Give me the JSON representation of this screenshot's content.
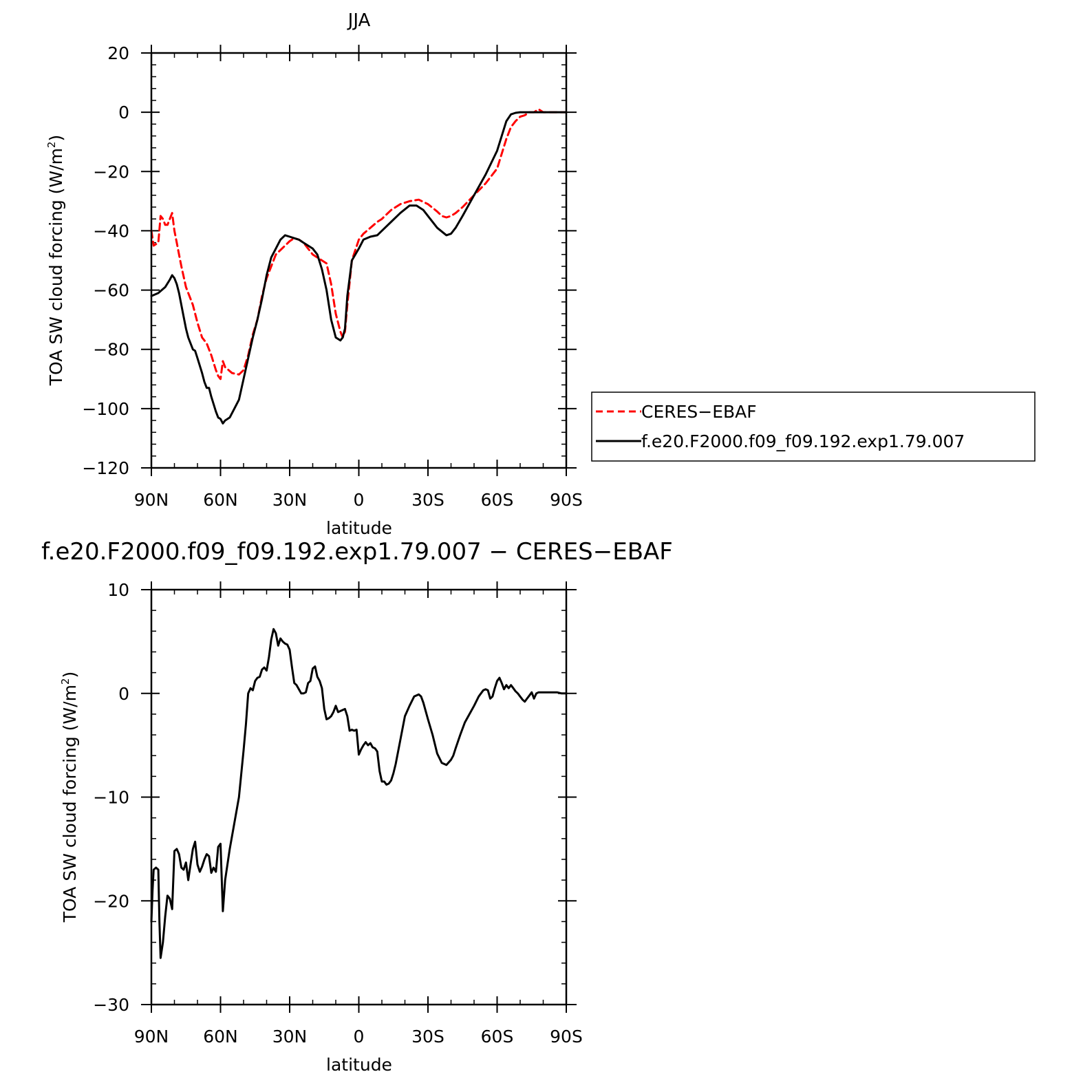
{
  "chart_data": [
    {
      "type": "line",
      "title": "JJA",
      "xlabel": "latitude",
      "ylabel_main": "TOA SW cloud forcing (W/m",
      "ylabel_sup": "2",
      "ylabel_close": ")",
      "xlim": [
        90,
        -90
      ],
      "ylim": [
        -120,
        20
      ],
      "x_ticks": [
        90,
        60,
        30,
        0,
        -30,
        -60,
        -90
      ],
      "x_tick_labels": [
        "90N",
        "60N",
        "30N",
        "0",
        "30S",
        "60S",
        "90S"
      ],
      "y_ticks": [
        20,
        0,
        -20,
        -40,
        -60,
        -80,
        -100,
        -120
      ],
      "y_tick_labels": [
        "20",
        "0",
        "−20",
        "−40",
        "−60",
        "−80",
        "−100",
        "−120"
      ],
      "grid": false,
      "legend": "right",
      "series": [
        {
          "name": "CERES−EBAF",
          "color": "#ff0000",
          "dash": "dashed",
          "x": [
            90,
            89,
            87,
            86,
            85,
            84,
            83,
            82,
            81,
            80,
            79,
            78,
            77,
            75,
            72,
            70,
            68,
            66,
            64,
            62,
            61,
            60,
            59,
            58,
            55,
            52,
            50,
            48,
            46,
            44,
            42,
            40,
            38,
            36,
            34,
            32,
            30,
            28,
            26,
            24,
            22,
            20,
            18,
            16,
            14,
            12,
            10,
            8,
            7,
            6,
            5,
            3,
            0,
            -2,
            -5,
            -8,
            -10,
            -14,
            -18,
            -22,
            -26,
            -30,
            -34,
            -36,
            -38,
            -40,
            -42,
            -45,
            -50,
            -55,
            -60,
            -62,
            -64,
            -66,
            -68,
            -70,
            -72,
            -74,
            -76,
            -78,
            -80,
            -85,
            -90
          ],
          "y": [
            -40,
            -45,
            -44,
            -35,
            -36,
            -38,
            -38,
            -36,
            -34,
            -40,
            -44,
            -48,
            -52,
            -59,
            -65,
            -71,
            -76,
            -78,
            -82,
            -87,
            -89,
            -90,
            -84,
            -86,
            -88,
            -88.5,
            -87,
            -82,
            -75,
            -70,
            -62,
            -56,
            -52,
            -48,
            -46.5,
            -45,
            -43.5,
            -42.5,
            -43,
            -44,
            -46,
            -48,
            -49,
            -50,
            -51,
            -58,
            -68,
            -74,
            -76,
            -74,
            -65,
            -50,
            -43,
            -41,
            -39,
            -37,
            -36,
            -33,
            -31,
            -30,
            -29.5,
            -31,
            -33.5,
            -35,
            -35.5,
            -35,
            -34,
            -32,
            -28,
            -24,
            -19,
            -14,
            -9,
            -5,
            -3,
            -1.5,
            -1,
            0,
            0,
            1,
            0,
            0,
            0
          ]
        },
        {
          "name": "f.e20.F2000.f09_f09.192.exp1.79.007",
          "color": "#000000",
          "dash": "solid",
          "x": [
            90,
            87,
            84,
            82,
            81,
            80,
            79,
            78,
            76,
            75,
            74,
            72,
            71,
            70,
            68,
            67,
            66,
            65,
            64,
            62,
            61,
            60,
            59,
            58,
            56,
            54,
            52,
            50,
            48,
            46,
            44,
            42,
            40,
            38,
            36,
            34,
            32,
            30,
            28,
            26,
            24,
            22,
            20,
            18,
            16,
            14,
            12,
            10,
            8,
            7,
            6,
            5,
            3,
            0,
            -2,
            -5,
            -8,
            -10,
            -14,
            -18,
            -22,
            -25,
            -28,
            -30,
            -34,
            -38,
            -40,
            -42,
            -45,
            -50,
            -55,
            -60,
            -62,
            -64,
            -66,
            -68,
            -70,
            -72,
            -74,
            -76,
            -80,
            -85,
            -90
          ],
          "y": [
            -62,
            -61,
            -59,
            -56.5,
            -55,
            -56,
            -58,
            -61,
            -69,
            -73,
            -76,
            -80,
            -80.5,
            -83,
            -88,
            -91,
            -93,
            -93,
            -96,
            -101,
            -103,
            -103.5,
            -105,
            -104,
            -103,
            -100,
            -97,
            -90,
            -83,
            -76,
            -70,
            -63,
            -55,
            -49,
            -46,
            -43,
            -41.5,
            -42,
            -42.5,
            -43,
            -44,
            -45,
            -46,
            -48,
            -53,
            -60,
            -70,
            -76,
            -77,
            -76,
            -73,
            -62,
            -50,
            -46,
            -43,
            -42,
            -41.5,
            -40,
            -37,
            -34,
            -31.5,
            -31.5,
            -33,
            -35,
            -39,
            -41.5,
            -41,
            -39,
            -35,
            -28,
            -21,
            -13,
            -8,
            -3,
            -0.7,
            -0.2,
            0,
            0,
            0,
            0,
            0,
            0,
            0
          ]
        }
      ]
    },
    {
      "type": "line",
      "title": "f.e20.F2000.f09_f09.192.exp1.79.007 − CERES−EBAF",
      "xlabel": "latitude",
      "ylabel_main": "TOA SW cloud forcing (W/m",
      "ylabel_sup": "2",
      "ylabel_close": ")",
      "xlim": [
        90,
        -90
      ],
      "ylim": [
        -30,
        10
      ],
      "x_ticks": [
        90,
        60,
        30,
        0,
        -30,
        -60,
        -90
      ],
      "x_tick_labels": [
        "90N",
        "60N",
        "30N",
        "0",
        "30S",
        "60S",
        "90S"
      ],
      "y_ticks": [
        10,
        0,
        -10,
        -20,
        -30
      ],
      "y_tick_labels": [
        "10",
        "0",
        "−10",
        "−20",
        "−30"
      ],
      "grid": false,
      "series": [
        {
          "color": "#000000",
          "dash": "solid",
          "x": [
            90,
            89.5,
            89,
            88,
            87,
            86.5,
            86,
            85,
            84,
            83,
            82,
            81,
            80,
            79,
            78,
            77,
            76,
            75,
            74,
            73,
            72,
            71,
            70,
            69,
            68,
            67,
            66,
            65,
            64,
            63,
            62,
            61,
            60,
            59,
            58,
            56,
            54,
            52,
            50,
            49,
            48,
            47,
            46,
            45,
            44,
            43,
            42,
            41,
            40,
            39,
            38,
            37,
            36,
            35,
            34,
            33,
            32,
            31,
            30,
            29,
            28,
            27,
            26,
            25,
            24,
            23,
            22,
            21,
            20,
            19,
            18,
            17,
            16,
            15,
            14,
            13,
            12,
            11,
            10,
            9,
            8,
            7,
            6,
            5,
            4,
            3,
            2,
            1,
            0,
            -1,
            -2,
            -3,
            -4,
            -5,
            -6,
            -7,
            -8,
            -9,
            -10,
            -11,
            -12,
            -13,
            -14,
            -15,
            -16,
            -18,
            -20,
            -22,
            -24,
            -26,
            -27,
            -28,
            -30,
            -32,
            -34,
            -36,
            -38,
            -40,
            -41,
            -42,
            -44,
            -46,
            -48,
            -50,
            -52,
            -54,
            -55,
            -56,
            -57,
            -58,
            -59,
            -60,
            -61,
            -62,
            -63,
            -64,
            -65,
            -66,
            -67,
            -68,
            -69,
            -70,
            -71,
            -72,
            -73,
            -74,
            -75,
            -76,
            -77,
            -78,
            -79,
            -80,
            -82,
            -84,
            -86,
            -88,
            -90
          ],
          "y": [
            -22,
            -19,
            -17,
            -16.8,
            -17,
            -22,
            -25.5,
            -24,
            -21.5,
            -19.5,
            -19.8,
            -20.8,
            -15.2,
            -15,
            -15.5,
            -16.8,
            -17,
            -16.3,
            -18,
            -16.5,
            -15,
            -14.3,
            -16.5,
            -17.2,
            -16.7,
            -16,
            -15.5,
            -15.7,
            -17.3,
            -16.8,
            -17.2,
            -14.8,
            -14.5,
            -21,
            -18,
            -15,
            -12.5,
            -10,
            -5.5,
            -3,
            0,
            0.5,
            0.3,
            1.2,
            1.5,
            1.6,
            2.3,
            2.5,
            2.2,
            3.5,
            5.2,
            6.2,
            5.8,
            4.6,
            5.3,
            5,
            4.8,
            4.7,
            4.2,
            2.5,
            1,
            0.8,
            0.4,
            0,
            0,
            0.1,
            1,
            1.2,
            2.4,
            2.6,
            1.6,
            1.2,
            0.5,
            -1.5,
            -2.5,
            -2.4,
            -2.2,
            -1.8,
            -1.2,
            -1.8,
            -1.7,
            -1.6,
            -1.5,
            -2.2,
            -3.6,
            -3.5,
            -3.6,
            -3.5,
            -5.9,
            -5.4,
            -5,
            -4.7,
            -5,
            -4.8,
            -5.2,
            -5.3,
            -5.6,
            -7.5,
            -8.5,
            -8.5,
            -8.8,
            -8.7,
            -8.4,
            -7.7,
            -6.8,
            -4.5,
            -2.2,
            -1.2,
            -0.3,
            -0.1,
            -0.3,
            -0.9,
            -2.5,
            -4,
            -5.8,
            -6.7,
            -6.9,
            -6.4,
            -6,
            -5.3,
            -4,
            -2.8,
            -2,
            -1.2,
            -0.3,
            0.3,
            0.4,
            0.3,
            -0.5,
            -0.3,
            0.5,
            1.2,
            1.5,
            1,
            0.4,
            0.8,
            0.5,
            0.8,
            0.5,
            0.2,
            0,
            -0.3,
            -0.6,
            -0.8,
            -0.5,
            -0.2,
            0.1,
            -0.5,
            0,
            0.1,
            0.1,
            0.1,
            0.1,
            0.1,
            0.1,
            0,
            0
          ]
        }
      ]
    }
  ]
}
